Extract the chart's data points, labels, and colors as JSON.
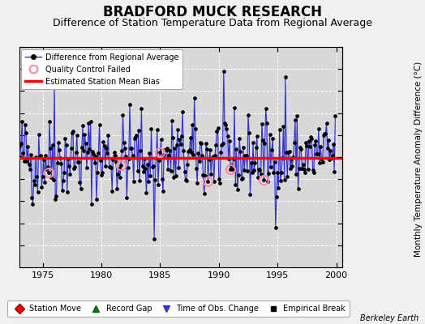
{
  "title": "BRADFORD MUCK RESEARCH",
  "subtitle": "Difference of Station Temperature Data from Regional Average",
  "ylabel": "Monthly Temperature Anomaly Difference (°C)",
  "xlabel_credit": "Berkeley Earth",
  "xlim": [
    1973.0,
    2000.5
  ],
  "ylim": [
    -2.5,
    2.5
  ],
  "yticks": [
    -2.5,
    -2,
    -1.5,
    -1,
    -0.5,
    0,
    0.5,
    1,
    1.5,
    2,
    2.5
  ],
  "xticks": [
    1975,
    1980,
    1985,
    1990,
    1995,
    2000
  ],
  "bias_value": -0.02,
  "line_color": "#3333cc",
  "line_fill_color": "#8888ff",
  "marker_color": "#000000",
  "qc_color": "#ff88aa",
  "bias_color": "#ff0000",
  "bg_color": "#d8d8d8",
  "title_fontsize": 12,
  "subtitle_fontsize": 9,
  "axis_fontsize": 8,
  "seed": 42
}
